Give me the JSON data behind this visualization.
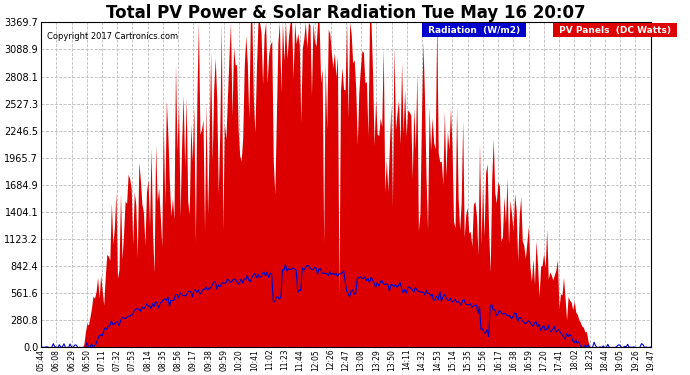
{
  "title": "Total PV Power & Solar Radiation Tue May 16 20:07",
  "copyright": "Copyright 2017 Cartronics.com",
  "yticks": [
    0.0,
    280.8,
    561.6,
    842.4,
    1123.2,
    1404.1,
    1684.9,
    1965.7,
    2246.5,
    2527.3,
    2808.1,
    3088.9,
    3369.7
  ],
  "ymax": 3369.7,
  "ymin": 0.0,
  "bg_color": "#ffffff",
  "plot_bg_color": "#ffffff",
  "grid_color": "#bbbbbb",
  "red_color": "#dd0000",
  "blue_color": "#0000cc",
  "title_fontsize": 12,
  "xtick_labels": [
    "05:44",
    "06:08",
    "06:29",
    "06:50",
    "07:11",
    "07:32",
    "07:53",
    "08:14",
    "08:35",
    "08:56",
    "09:17",
    "09:38",
    "09:59",
    "10:20",
    "10:41",
    "11:02",
    "11:23",
    "11:44",
    "12:05",
    "12:26",
    "12:47",
    "13:08",
    "13:29",
    "13:50",
    "14:11",
    "14:32",
    "14:53",
    "15:14",
    "15:35",
    "15:56",
    "16:17",
    "16:38",
    "16:59",
    "17:20",
    "17:41",
    "18:02",
    "18:23",
    "18:44",
    "19:05",
    "19:26",
    "19:47"
  ]
}
